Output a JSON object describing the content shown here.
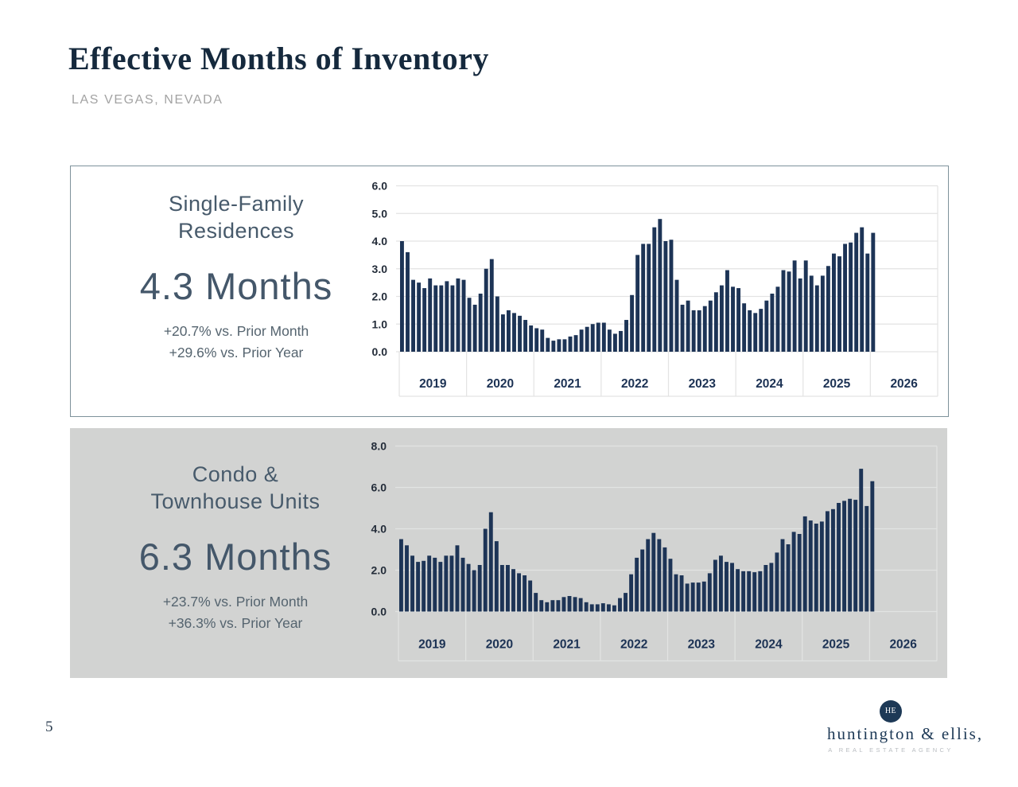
{
  "page": {
    "title": "Effective Months of Inventory",
    "subtitle": "LAS VEGAS, NEVADA",
    "page_number": "5"
  },
  "logo": {
    "monogram": "HE",
    "name": "huntington & ellis,",
    "tagline": "A REAL ESTATE AGENCY"
  },
  "colors": {
    "bar_navy": "#1d3456",
    "title_navy": "#15293d",
    "panel_text": "#475a6b",
    "panel2_bg": "#d2d3d2",
    "grid_on_white": "#e3e3e3",
    "grid_on_gray": "#e2e4e3",
    "tick_label": "#242d3a",
    "year_label": "#1c3254"
  },
  "panels": [
    {
      "heading_line1": "Single-Family",
      "heading_line2": "Residences",
      "value": "4.3 Months",
      "stat_month": "+20.7% vs. Prior Month",
      "stat_year": "+29.6%  vs. Prior Year"
    },
    {
      "heading_line1": "Condo &",
      "heading_line2": "Townhouse Units",
      "value": "6.3 Months",
      "stat_month": "+23.7% vs. Prior Month",
      "stat_year": "+36.3% vs. Prior Year"
    }
  ],
  "chart_data": [
    {
      "type": "bar",
      "title": "Single-Family Residences — Effective Months of Inventory",
      "x_year_labels": [
        "2019",
        "2020",
        "2021",
        "2022",
        "2023",
        "2024",
        "2025",
        "2026"
      ],
      "months_start": "2019-01",
      "months_end": "2026-01",
      "y_tick_labels": [
        "6.0",
        "5.0",
        "4.0",
        "3.0",
        "2.0",
        "1.0",
        "0.0"
      ],
      "y_ticks": [
        6,
        5,
        4,
        3,
        2,
        1,
        0
      ],
      "ylim": [
        0,
        6
      ],
      "grid": true,
      "legend": "none",
      "values": [
        4.0,
        3.6,
        2.6,
        2.5,
        2.3,
        2.65,
        2.4,
        2.4,
        2.55,
        2.4,
        2.65,
        2.6,
        1.95,
        1.7,
        2.1,
        3.0,
        3.35,
        2.0,
        1.35,
        1.5,
        1.4,
        1.3,
        1.15,
        0.95,
        0.85,
        0.8,
        0.5,
        0.4,
        0.45,
        0.45,
        0.55,
        0.6,
        0.8,
        0.9,
        1.0,
        1.05,
        1.05,
        0.8,
        0.65,
        0.75,
        1.15,
        2.05,
        3.5,
        3.9,
        3.9,
        4.5,
        4.8,
        4.0,
        4.05,
        2.6,
        1.7,
        1.85,
        1.5,
        1.5,
        1.65,
        1.85,
        2.15,
        2.4,
        2.95,
        2.35,
        2.3,
        1.75,
        1.5,
        1.4,
        1.55,
        1.85,
        2.1,
        2.35,
        2.95,
        2.9,
        3.3,
        2.65,
        3.3,
        2.75,
        2.4,
        2.75,
        3.1,
        3.55,
        3.45,
        3.9,
        3.95,
        4.3,
        4.5,
        3.55,
        4.3
      ]
    },
    {
      "type": "bar",
      "title": "Condo & Townhouse Units — Effective Months of Inventory",
      "x_year_labels": [
        "2019",
        "2020",
        "2021",
        "2022",
        "2023",
        "2024",
        "2025",
        "2026"
      ],
      "months_start": "2019-01",
      "months_end": "2026-01",
      "y_tick_labels": [
        "8.0",
        "6.0",
        "4.0",
        "2.0",
        "0.0"
      ],
      "y_ticks": [
        8,
        6,
        4,
        2,
        0
      ],
      "ylim": [
        0,
        8
      ],
      "grid": true,
      "legend": "none",
      "values": [
        3.5,
        3.2,
        2.7,
        2.4,
        2.45,
        2.7,
        2.6,
        2.4,
        2.7,
        2.7,
        3.2,
        2.6,
        2.3,
        2.0,
        2.25,
        4.0,
        4.8,
        3.4,
        2.25,
        2.25,
        2.05,
        1.85,
        1.75,
        1.5,
        0.9,
        0.55,
        0.45,
        0.55,
        0.55,
        0.7,
        0.75,
        0.7,
        0.65,
        0.45,
        0.35,
        0.35,
        0.4,
        0.35,
        0.3,
        0.65,
        0.9,
        1.8,
        2.6,
        3.0,
        3.5,
        3.8,
        3.5,
        3.1,
        2.55,
        1.8,
        1.75,
        1.35,
        1.4,
        1.4,
        1.45,
        1.85,
        2.5,
        2.7,
        2.4,
        2.35,
        2.05,
        1.95,
        1.95,
        1.9,
        1.95,
        2.25,
        2.35,
        2.85,
        3.5,
        3.25,
        3.85,
        3.75,
        4.6,
        4.4,
        4.25,
        4.35,
        4.85,
        4.95,
        5.25,
        5.35,
        5.45,
        5.4,
        6.9,
        5.1,
        6.3
      ]
    }
  ]
}
